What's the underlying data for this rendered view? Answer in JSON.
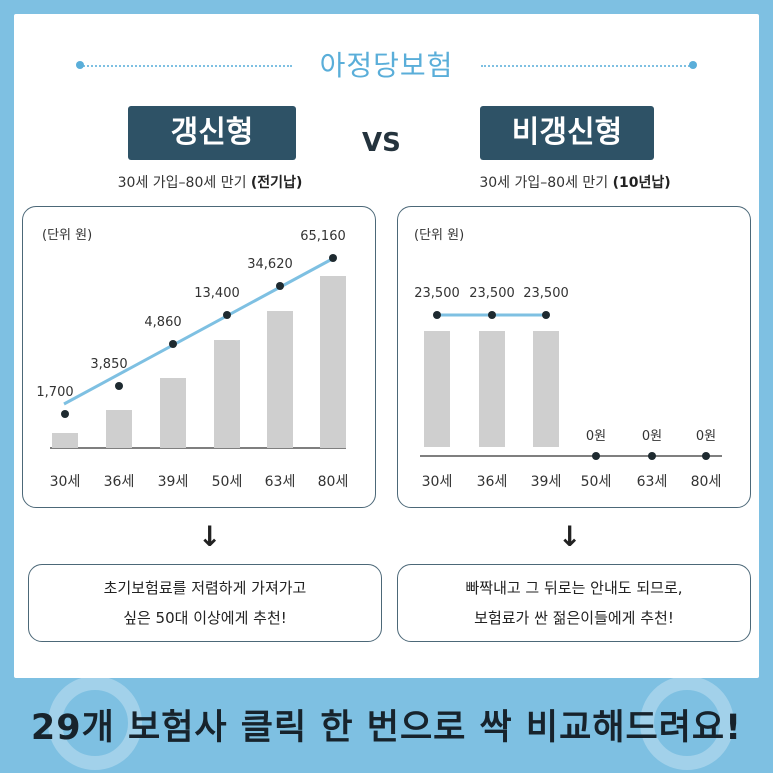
{
  "header": {
    "title": "아정당보험"
  },
  "left": {
    "badge": "갱신형",
    "subtitle_prefix": "30세 가입–80세 만기 ",
    "subtitle_bold": "(전기납)",
    "unit": "(단위 원)",
    "note_line1": "초기보험료를 저렴하게 가져가고",
    "note_line2": "싶은  50대 이상에게 추천!"
  },
  "vs": "VS",
  "right": {
    "badge": "비갱신형",
    "subtitle_prefix": "30세 가입–80세 만기 ",
    "subtitle_bold": "(10년납)",
    "unit": "(단위 원)",
    "note_line1": "빠짝내고 그 뒤로는 안내도 되므로,",
    "note_line2": "보험료가 싼 젊은이들에게 추천!"
  },
  "arrow_glyph": "↓",
  "footer": {
    "text": "29개 보험사 클릭 한 번으로 싹 비교해드려요!"
  },
  "chart_data": [
    {
      "type": "bar",
      "categories": [
        "30세",
        "36세",
        "39세",
        "50세",
        "63세",
        "80세"
      ],
      "values": [
        1700,
        3850,
        4860,
        13400,
        34620,
        65160
      ],
      "labels": [
        "1,700",
        "3,850",
        "4,860",
        "13,400",
        "34,620",
        "65,160"
      ],
      "unit": "(단위 원)",
      "trend_line": true,
      "colors": {
        "bar": "#cfcfcf",
        "line": "#7ec0e2",
        "point": "#1e2a30"
      }
    },
    {
      "type": "bar",
      "categories": [
        "30세",
        "36세",
        "39세",
        "50세",
        "63세",
        "80세"
      ],
      "values": [
        23500,
        23500,
        23500,
        0,
        0,
        0
      ],
      "labels": [
        "23,500",
        "23,500",
        "23,500",
        "0원",
        "0원",
        "0원"
      ],
      "unit": "(단위 원)",
      "trend_line": true,
      "colors": {
        "bar": "#cfcfcf",
        "line": "#7ec0e2",
        "point": "#1e2a30"
      }
    }
  ]
}
